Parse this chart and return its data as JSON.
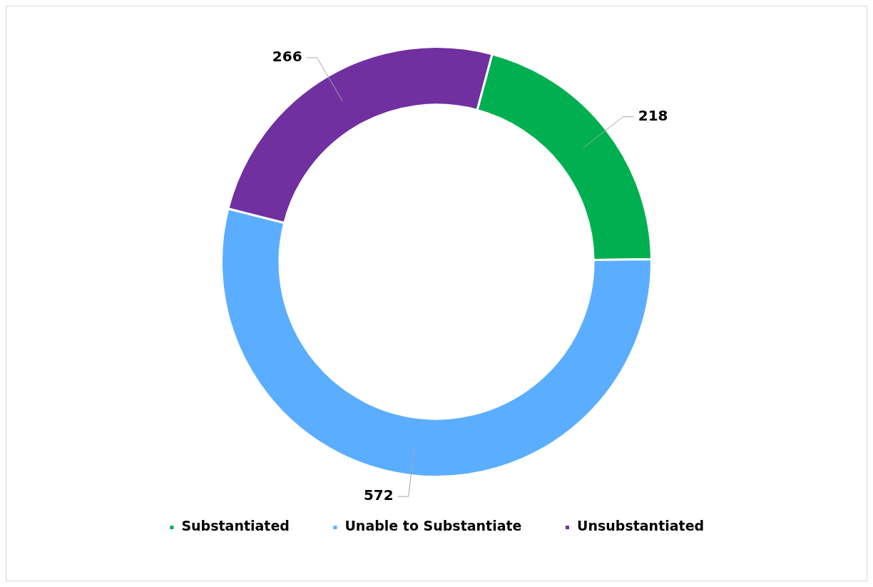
{
  "chart_data": {
    "type": "donut",
    "categories": [
      "Substantiated",
      "Unable to Substantiate",
      "Unsubstantiated"
    ],
    "values": [
      218,
      572,
      266
    ],
    "colors": [
      "#00b050",
      "#5baeff",
      "#7030a0"
    ],
    "data_labels": true,
    "legend": "bottom"
  }
}
